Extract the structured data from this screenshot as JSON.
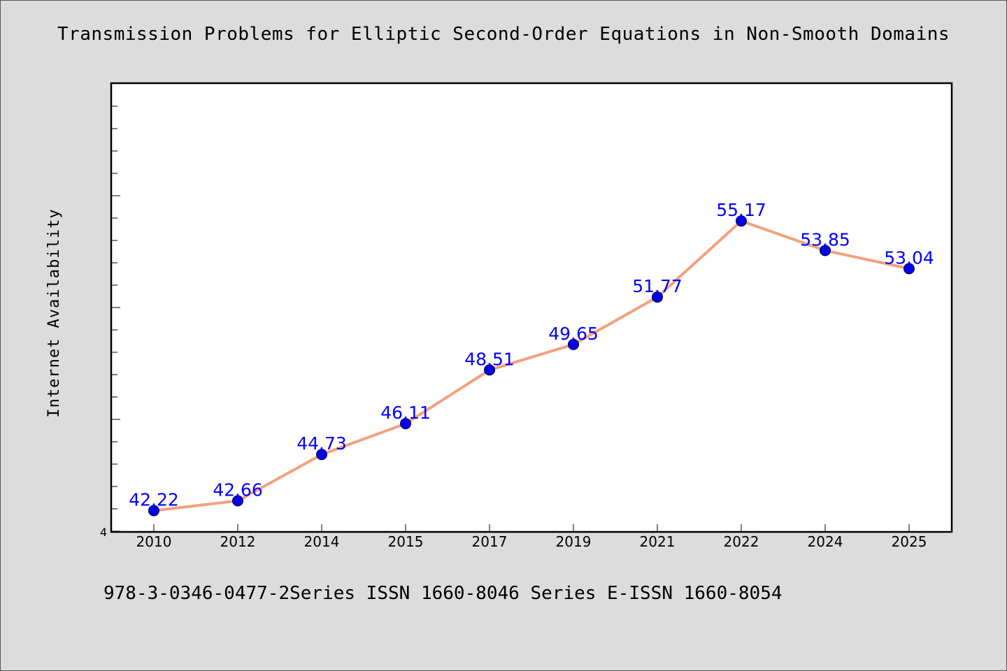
{
  "chart_data": {
    "type": "line",
    "title": "Transmission Problems for Elliptic Second-Order Equations in Non-Smooth Domains",
    "xlabel": "",
    "ylabel": "Internet Availability",
    "categories": [
      "2010",
      "2012",
      "2014",
      "2015",
      "2017",
      "2019",
      "2021",
      "2022",
      "2024",
      "2025"
    ],
    "series": [
      {
        "values": [
          42.22,
          42.66,
          44.73,
          46.11,
          48.51,
          49.65,
          51.77,
          55.17,
          53.85,
          53.04
        ],
        "labels": [
          "42.22",
          "42.66",
          "44.73",
          "46.11",
          "48.51",
          "49.65",
          "51.77",
          "55.17",
          "53.85",
          "53.04"
        ],
        "line_color": "#f4a07e",
        "marker_color": "#0000ee",
        "label_color": "#0000ff"
      }
    ],
    "ylim": [
      41.3,
      61.3
    ],
    "y_tick_label": "4",
    "grid": false,
    "legend": "none"
  },
  "footer": "978-3-0346-0477-2Series ISSN 1660-8046 Series E-ISSN 1660-8054",
  "colors": {
    "background": "#dcdcdc",
    "plot_background": "#ffffff"
  }
}
